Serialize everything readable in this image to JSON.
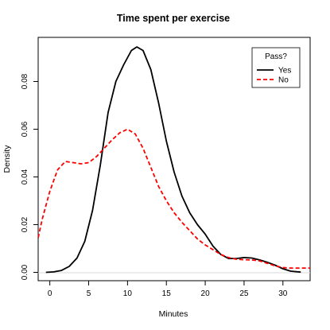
{
  "chart_data": {
    "type": "line",
    "title": "Time spent per exercise",
    "xlabel": "Minutes",
    "ylabel": "Density",
    "xlim": [
      -1.5,
      33.5
    ],
    "ylim": [
      -0.0035,
      0.0985
    ],
    "x_ticks": [
      0,
      5,
      10,
      15,
      20,
      25,
      30
    ],
    "y_ticks": [
      0.0,
      0.02,
      0.04,
      0.06,
      0.08
    ],
    "y_tick_labels": [
      "0.00",
      "0.02",
      "0.04",
      "0.06",
      "0.08"
    ],
    "grid": false,
    "legend": {
      "title": "Pass?",
      "position": "top-right"
    },
    "series": [
      {
        "name": "Yes",
        "color": "#000000",
        "style": "solid",
        "x": [
          -0.5,
          0.5,
          1.5,
          2.5,
          3.5,
          4.5,
          5.5,
          6.5,
          7.5,
          8.5,
          9.5,
          10.5,
          11.2,
          12,
          13,
          14,
          15,
          16,
          17,
          18,
          19,
          20,
          21,
          22,
          23,
          24,
          25,
          26,
          27,
          28,
          29,
          30,
          31,
          32.3
        ],
        "y": [
          0.0,
          0.0002,
          0.0008,
          0.0025,
          0.006,
          0.013,
          0.026,
          0.045,
          0.067,
          0.08,
          0.087,
          0.093,
          0.0945,
          0.093,
          0.085,
          0.071,
          0.055,
          0.042,
          0.032,
          0.025,
          0.02,
          0.016,
          0.011,
          0.0075,
          0.0058,
          0.0058,
          0.0062,
          0.006,
          0.0052,
          0.0042,
          0.003,
          0.0015,
          0.0005,
          0.0001
        ]
      },
      {
        "name": "No",
        "color": "#ff0000",
        "style": "dashed",
        "x": [
          -1.5,
          -1,
          0,
          1,
          2,
          3,
          4,
          5,
          6,
          7,
          8,
          9,
          10,
          11,
          12,
          13,
          14,
          15,
          16,
          17,
          18,
          19,
          20,
          21,
          22,
          23,
          24,
          25,
          26,
          27,
          28,
          29,
          30,
          31,
          32,
          33.5
        ],
        "y": [
          0.0145,
          0.022,
          0.034,
          0.043,
          0.0465,
          0.046,
          0.0455,
          0.046,
          0.0485,
          0.052,
          0.0555,
          0.0585,
          0.06,
          0.058,
          0.052,
          0.044,
          0.036,
          0.03,
          0.025,
          0.021,
          0.0175,
          0.014,
          0.0115,
          0.0095,
          0.0075,
          0.0062,
          0.0055,
          0.0053,
          0.0052,
          0.0048,
          0.0038,
          0.0027,
          0.002,
          0.0018,
          0.0018,
          0.0018
        ]
      }
    ]
  }
}
